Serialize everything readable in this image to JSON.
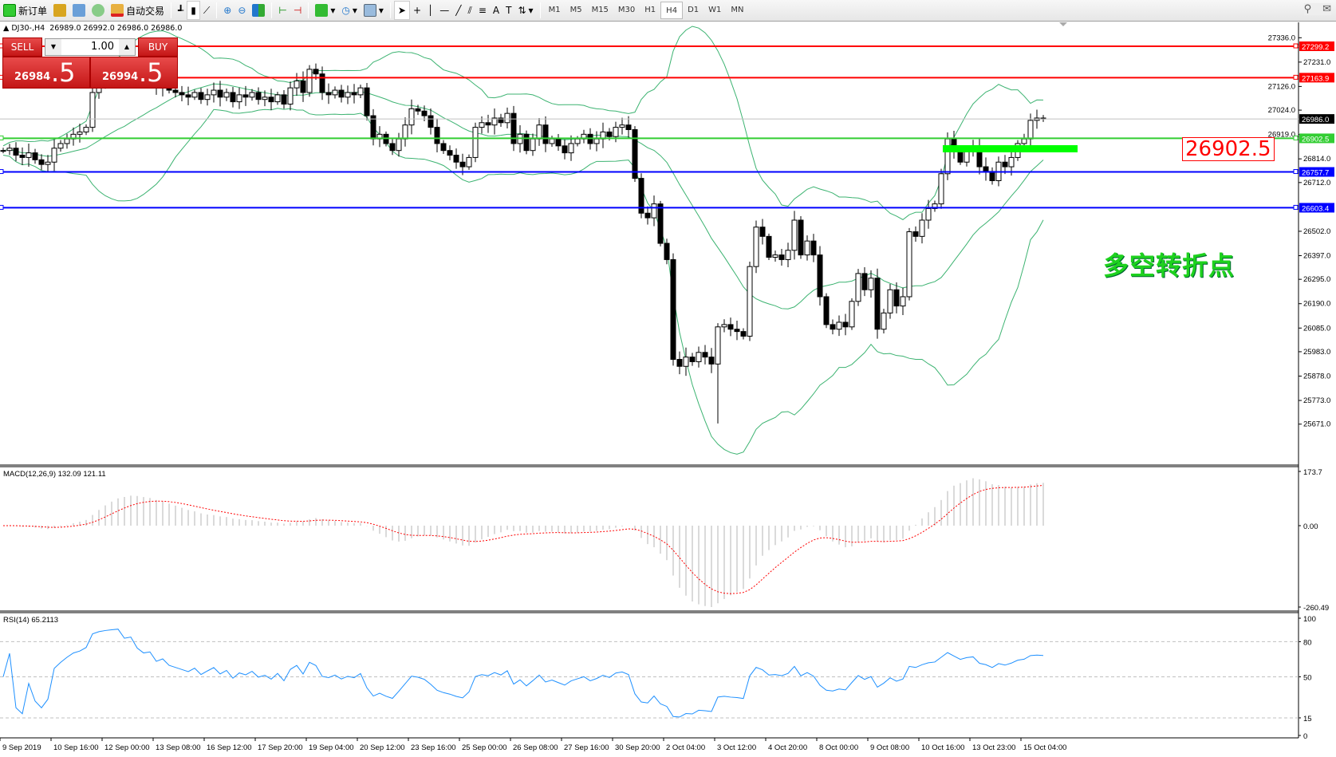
{
  "toolbar": {
    "new_order": "新订单",
    "auto_trade": "自动交易",
    "icons": [
      "new-order-icon",
      "market-watch-icon",
      "navigator-icon",
      "signals-icon",
      "auto-trading-icon",
      "bar-chart-icon",
      "candlestick-icon",
      "line-chart-icon",
      "zoom-in-icon",
      "zoom-out-icon",
      "tile-windows-icon",
      "chart-shift-icon",
      "autoscroll-icon",
      "indicators-icon",
      "periods-icon",
      "templates-icon",
      "cursor-icon",
      "crosshair-icon",
      "vertical-line-icon",
      "horizontal-line-icon",
      "trendline-icon",
      "equidistant-channel-icon",
      "fibonacci-icon",
      "text-icon",
      "text-label-icon",
      "arrows-icon"
    ],
    "timeframes": [
      "M1",
      "M5",
      "M15",
      "M30",
      "H1",
      "H4",
      "D1",
      "W1",
      "MN"
    ],
    "active_timeframe": "H4"
  },
  "chart_header": {
    "symbol": "DJ30-,H4",
    "ohlc": "26989.0 26992.0 26986.0 26986.0"
  },
  "trade_panel": {
    "sell_label": "SELL",
    "buy_label": "BUY",
    "lot": "1.00",
    "sell_main": "26984",
    "sell_pip": ".5",
    "buy_main": "26994",
    "buy_pip": ".5"
  },
  "annotations": {
    "level_note": "26902.5",
    "pivot_note": "多空转折点"
  },
  "colors": {
    "red_line": "#ff0000",
    "green_line": "#2ecc2e",
    "blue_line": "#0000ff",
    "current_line": "#c0c0c0",
    "bands": "#3cb371",
    "macd_signal": "#ff0000",
    "rsi": "#1e90ff"
  },
  "chart_data": {
    "type": "candlestick",
    "symbol": "DJ30-",
    "timeframe": "H4",
    "ylim": [
      25671.0,
      27336.0
    ],
    "price_ticks": [
      "27336.0",
      "27231.0",
      "27126.0",
      "27024.0",
      "26919.0",
      "26814.0",
      "26712.0",
      "26502.0",
      "26397.0",
      "26295.0",
      "26190.0",
      "26085.0",
      "25983.0",
      "25878.0",
      "25773.0",
      "25671.0"
    ],
    "close": [
      26850,
      26860,
      26830,
      26820,
      26840,
      26810,
      26790,
      26800,
      26860,
      26880,
      26900,
      26920,
      26930,
      26950,
      27100,
      27150,
      27180,
      27200,
      27220,
      27190,
      27210,
      27170,
      27150,
      27160,
      27120,
      27140,
      27110,
      27100,
      27090,
      27080,
      27100,
      27070,
      27090,
      27110,
      27080,
      27100,
      27060,
      27090,
      27080,
      27100,
      27070,
      27080,
      27060,
      27090,
      27050,
      27120,
      27150,
      27100,
      27200,
      27180,
      27100,
      27090,
      27110,
      27080,
      27100,
      27090,
      27120,
      27000,
      26900,
      26920,
      26880,
      26850,
      26900,
      26960,
      27030,
      27020,
      27000,
      26950,
      26880,
      26850,
      26830,
      26800,
      26780,
      26820,
      26950,
      26970,
      26960,
      26990,
      26970,
      27010,
      26880,
      26920,
      26850,
      26900,
      26960,
      26880,
      26900,
      26870,
      26840,
      26880,
      26900,
      26920,
      26880,
      26900,
      26930,
      26910,
      26950,
      26960,
      26940,
      26730,
      26580,
      26560,
      26620,
      26450,
      26380,
      25950,
      25920,
      25960,
      25940,
      25980,
      25960,
      25930,
      26090,
      26100,
      26080,
      26070,
      26050,
      26350,
      26520,
      26480,
      26390,
      26400,
      26380,
      26420,
      26550,
      26400,
      26460,
      26400,
      26220,
      26100,
      26080,
      26110,
      26090,
      26200,
      26320,
      26250,
      26300,
      26080,
      26150,
      26250,
      26180,
      26220,
      26500,
      26480,
      26550,
      26600,
      26620,
      26750,
      26900,
      26850,
      26800,
      26850,
      26870,
      26780,
      26760,
      26720,
      26800,
      26780,
      26820,
      26880,
      26900,
      26980,
      26990,
      26986
    ],
    "hlines": [
      {
        "price": 27299.2,
        "label": "27299.2",
        "color": "#ff0000"
      },
      {
        "price": 27163.9,
        "label": "27163.9",
        "color": "#ff0000"
      },
      {
        "price": 26986.0,
        "label": "26986.0",
        "color": "#000000"
      },
      {
        "price": 26902.5,
        "label": "26902.5",
        "color": "#32cd32"
      },
      {
        "price": 26757.7,
        "label": "26757.7",
        "color": "#0000ff"
      },
      {
        "price": 26603.4,
        "label": "26603.4",
        "color": "#0000ff"
      }
    ],
    "time_labels": [
      "9 Sep 2019",
      "10 Sep 16:00",
      "12 Sep 00:00",
      "13 Sep 08:00",
      "16 Sep 12:00",
      "17 Sep 20:00",
      "19 Sep 04:00",
      "20 Sep 12:00",
      "23 Sep 16:00",
      "25 Sep 00:00",
      "26 Sep 08:00",
      "27 Sep 16:00",
      "30 Sep 20:00",
      "2 Oct 04:00",
      "3 Oct 12:00",
      "4 Oct 20:00",
      "8 Oct 00:00",
      "9 Oct 08:00",
      "10 Oct 16:00",
      "13 Oct 23:00",
      "15 Oct 04:00"
    ],
    "macd": {
      "label": "MACD(12,26,9) 132.09 121.11",
      "ylim": [
        -260.49,
        173.7
      ],
      "ticks": [
        "173.7",
        "0.00",
        "-260.49"
      ]
    },
    "rsi": {
      "label": "RSI(14) 65.2113",
      "ylim": [
        0,
        100
      ],
      "ticks": [
        "100",
        "80",
        "50",
        "15",
        "0"
      ],
      "levels": [
        80,
        50,
        15
      ]
    }
  }
}
